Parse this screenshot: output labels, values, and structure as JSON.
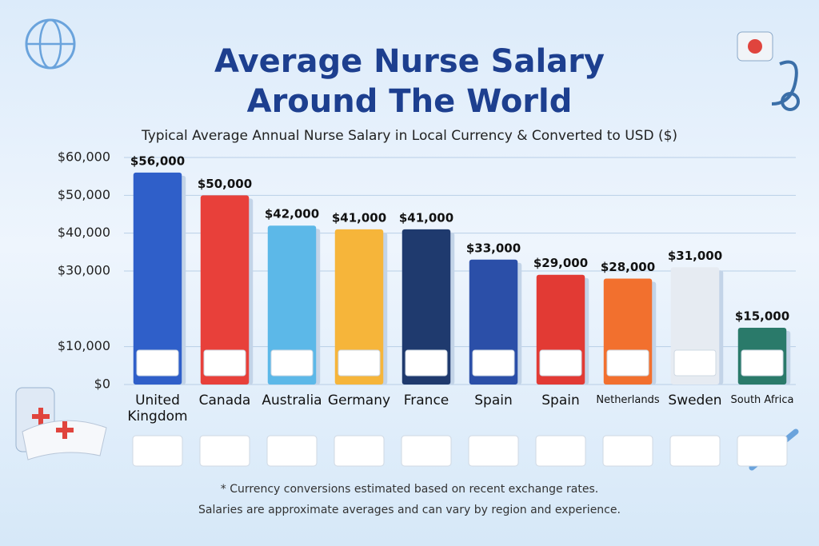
{
  "chart_data": {
    "type": "bar",
    "title": "Average Nurse Salary Around The World",
    "subtitle": "Typical Average Annual Nurse Salary in Local Currency & Converted to USD ($)",
    "categories": [
      "United Kingdom",
      "Canada",
      "Australia",
      "Germany",
      "France",
      "Spain",
      "Spain",
      "Netherlands",
      "Sweden",
      "South Africa"
    ],
    "values": [
      56000,
      50000,
      42000,
      41000,
      41000,
      33000,
      29000,
      28000,
      31000,
      15000
    ],
    "value_labels": [
      "$56,000",
      "$50,000",
      "$42,000",
      "$41,000",
      "$41,000",
      "$33,000",
      "$29,000",
      "$28,000",
      "$31,000",
      "$15,000"
    ],
    "colors": [
      "#2f5fc9",
      "#e8403a",
      "#5cb8e8",
      "#f6b53a",
      "#1f3a6e",
      "#2b4fa8",
      "#e23a34",
      "#f2702e",
      "#e6ebf2",
      "#2a7a6a"
    ],
    "ylim": [
      0,
      60000
    ],
    "yticks": [
      {
        "value": 0,
        "label": "$0"
      },
      {
        "value": 10000,
        "label": "$10,000"
      },
      {
        "value": 30000,
        "label": "$30,000"
      },
      {
        "value": 40000,
        "label": "$40,000"
      },
      {
        "value": 50000,
        "label": "$50,000"
      },
      {
        "value": 60000,
        "label": "$60,000"
      }
    ],
    "grid": true,
    "footnotes": [
      "* Currency conversions estimated based on recent exchange rates.",
      "Salaries are approximate averages and can vary by region and experience."
    ]
  }
}
